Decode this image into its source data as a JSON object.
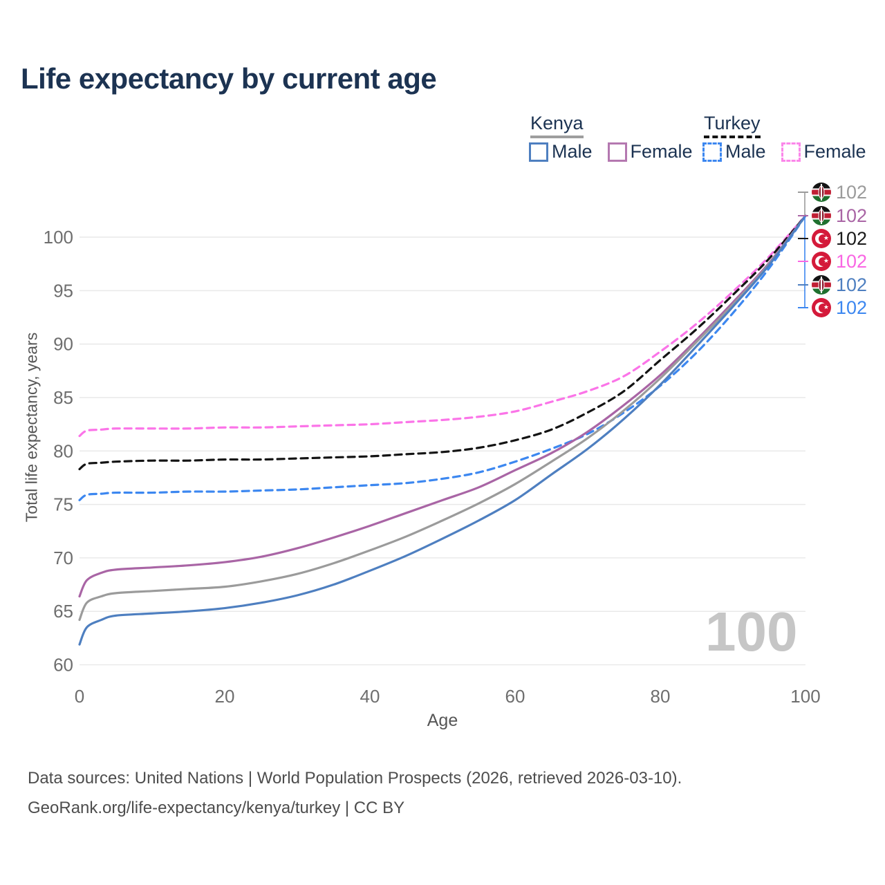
{
  "title": "Life expectancy by current age",
  "legend": {
    "groups": [
      {
        "name": "Kenya",
        "line_style": "solid",
        "underline_color": "#9e9e9e",
        "items": [
          {
            "label": "Male",
            "color": "#4e7fc0"
          },
          {
            "label": "Female",
            "color": "#b478b0"
          }
        ]
      },
      {
        "name": "Turkey",
        "line_style": "dashed",
        "underline_color": "#141414",
        "items": [
          {
            "label": "Male",
            "color": "#3c87f0"
          },
          {
            "label": "Female",
            "color": "#fb87ea"
          }
        ]
      }
    ]
  },
  "chart_data": {
    "type": "line",
    "title": "Life expectancy by current age",
    "xlabel": "Age",
    "ylabel": "Total life expectancy, years",
    "xlim": [
      0,
      100
    ],
    "ylim": [
      60,
      102
    ],
    "xticks": [
      0,
      20,
      40,
      60,
      80,
      100
    ],
    "yticks": [
      60,
      65,
      70,
      75,
      80,
      85,
      90,
      95,
      100
    ],
    "grid": true,
    "grid_color": "#e9e9e9",
    "watermark": "100",
    "x": [
      0,
      1,
      3,
      5,
      10,
      15,
      20,
      25,
      30,
      35,
      40,
      45,
      50,
      55,
      60,
      65,
      70,
      75,
      80,
      85,
      90,
      95,
      100
    ],
    "series": [
      {
        "name": "Turkey Female",
        "country": "Turkey",
        "sex": "Female",
        "color": "#fb74e8",
        "dash": true,
        "values": [
          81.4,
          81.9,
          82.0,
          82.1,
          82.1,
          82.1,
          82.2,
          82.2,
          82.3,
          82.4,
          82.5,
          82.7,
          82.9,
          83.2,
          83.7,
          84.6,
          85.6,
          87.0,
          89.3,
          91.9,
          94.9,
          98.2,
          102
        ]
      },
      {
        "name": "Turkey Total",
        "country": "Turkey",
        "sex": "All",
        "color": "#141414",
        "dash": true,
        "values": [
          78.3,
          78.8,
          78.9,
          79.0,
          79.1,
          79.1,
          79.2,
          79.2,
          79.3,
          79.4,
          79.5,
          79.7,
          79.9,
          80.3,
          81.0,
          82.0,
          83.6,
          85.6,
          88.5,
          91.4,
          94.6,
          98.0,
          102
        ]
      },
      {
        "name": "Turkey Male",
        "country": "Turkey",
        "sex": "Male",
        "color": "#3c87f0",
        "dash": true,
        "values": [
          75.4,
          75.9,
          76.0,
          76.1,
          76.1,
          76.2,
          76.2,
          76.3,
          76.4,
          76.6,
          76.8,
          77.0,
          77.4,
          78.0,
          79.0,
          80.2,
          81.6,
          83.6,
          86.1,
          89.2,
          92.9,
          97.1,
          102
        ]
      },
      {
        "name": "Kenya Female",
        "country": "Kenya",
        "sex": "Female",
        "color": "#a965a5",
        "dash": false,
        "values": [
          66.4,
          67.9,
          68.6,
          68.9,
          69.1,
          69.3,
          69.6,
          70.1,
          70.9,
          71.9,
          73.0,
          74.2,
          75.4,
          76.6,
          78.2,
          79.8,
          81.8,
          84.3,
          87.1,
          90.4,
          93.9,
          97.6,
          102
        ]
      },
      {
        "name": "Kenya Total",
        "country": "Kenya",
        "sex": "All",
        "color": "#9b9b9b",
        "dash": false,
        "values": [
          64.2,
          65.8,
          66.4,
          66.7,
          66.9,
          67.1,
          67.3,
          67.8,
          68.5,
          69.5,
          70.7,
          72.0,
          73.5,
          75.1,
          76.9,
          79.0,
          81.2,
          83.8,
          86.8,
          90.2,
          93.7,
          97.5,
          102
        ]
      },
      {
        "name": "Kenya Male",
        "country": "Kenya",
        "sex": "Male",
        "color": "#4e7fc0",
        "dash": false,
        "values": [
          61.9,
          63.5,
          64.2,
          64.6,
          64.8,
          65.0,
          65.3,
          65.8,
          66.5,
          67.5,
          68.8,
          70.2,
          71.8,
          73.5,
          75.4,
          77.8,
          80.2,
          83.0,
          86.2,
          89.8,
          93.5,
          97.4,
          102
        ]
      }
    ]
  },
  "end_labels": [
    {
      "flag": "kenya",
      "series": "Kenya Total",
      "value": "102",
      "color": "#9b9b9b"
    },
    {
      "flag": "kenya",
      "series": "Kenya Female",
      "value": "102",
      "color": "#a965a5"
    },
    {
      "flag": "turkey",
      "series": "Turkey Total",
      "value": "102",
      "color": "#1a1a1a"
    },
    {
      "flag": "turkey",
      "series": "Turkey Female",
      "value": "102",
      "color": "#f966e3"
    },
    {
      "flag": "kenya",
      "series": "Kenya Male",
      "value": "102",
      "color": "#4e7fc0"
    },
    {
      "flag": "turkey",
      "series": "Turkey Male",
      "value": "102",
      "color": "#3c87f0"
    }
  ],
  "footer": {
    "line1": "Data sources: United Nations | World Population Prospects (2026, retrieved 2026-03-10).",
    "line2": "GeoRank.org/life-expectancy/kenya/turkey | CC BY"
  }
}
